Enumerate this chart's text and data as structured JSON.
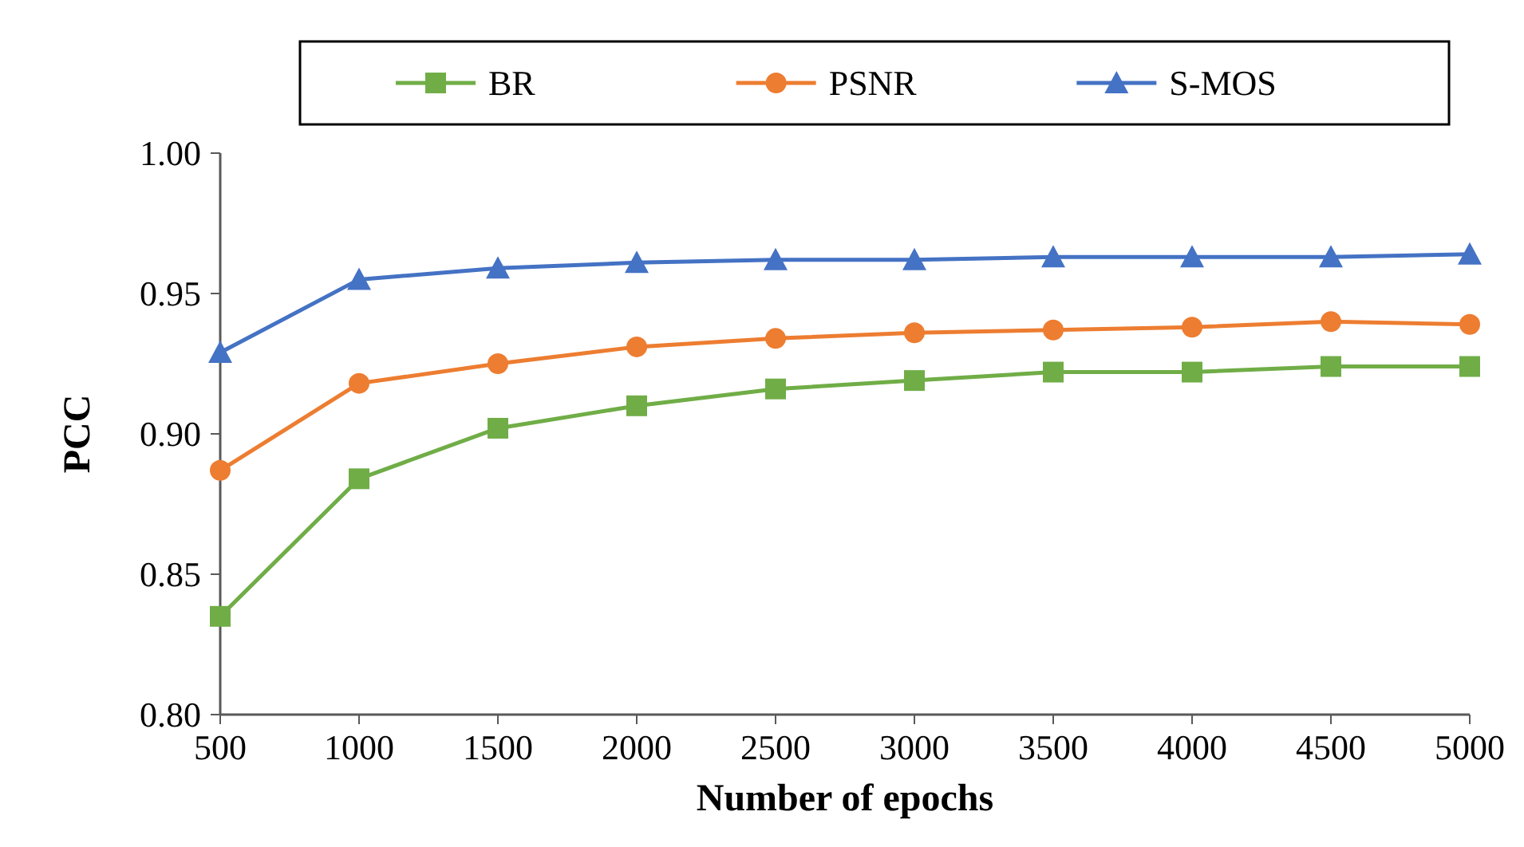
{
  "chart_data": {
    "type": "line",
    "xlabel": "Number of epochs",
    "ylabel": "PCC",
    "x": [
      500,
      1000,
      1500,
      2000,
      2500,
      3000,
      3500,
      4000,
      4500,
      5000
    ],
    "xlim": [
      500,
      5000
    ],
    "xticks": [
      500,
      1000,
      1500,
      2000,
      2500,
      3000,
      3500,
      4000,
      4500,
      5000
    ],
    "ylim": [
      0.8,
      1.0
    ],
    "yticks": [
      {
        "value": 0.8,
        "label": "0.80"
      },
      {
        "value": 0.85,
        "label": "0.85"
      },
      {
        "value": 0.9,
        "label": "0.90"
      },
      {
        "value": 0.95,
        "label": "0.95"
      },
      {
        "value": 1.0,
        "label": "1.00"
      }
    ],
    "legend": "top",
    "grid": false,
    "series": [
      {
        "name": "BR",
        "color": "#70ad47",
        "marker": "square",
        "values": [
          0.835,
          0.884,
          0.902,
          0.91,
          0.916,
          0.919,
          0.922,
          0.922,
          0.924,
          0.924
        ]
      },
      {
        "name": "PSNR",
        "color": "#ed7d31",
        "marker": "circle",
        "values": [
          0.887,
          0.918,
          0.925,
          0.931,
          0.934,
          0.936,
          0.937,
          0.938,
          0.94,
          0.939
        ]
      },
      {
        "name": "S-MOS",
        "color": "#4472c4",
        "marker": "triangle",
        "values": [
          0.929,
          0.955,
          0.959,
          0.961,
          0.962,
          0.962,
          0.963,
          0.963,
          0.963,
          0.964
        ]
      }
    ]
  }
}
